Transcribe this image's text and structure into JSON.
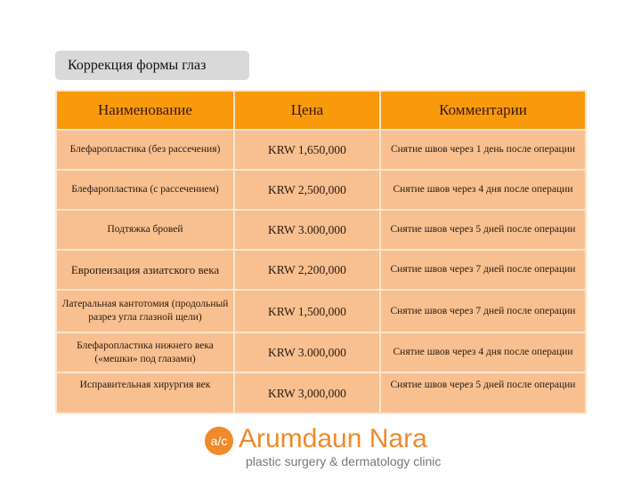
{
  "title": "Коррекция формы глаз",
  "table": {
    "headers": [
      "Наименование",
      "Цена",
      "Комментарии"
    ],
    "rows": [
      {
        "name": "Блефаропластика (без рассечения)",
        "price": "KRW 1,650,000",
        "comment": "Снятие швов через 1 день после операции"
      },
      {
        "name": "Блефаропластика (с рассечением)",
        "price": "KRW 2,500,000",
        "comment": "Снятие швов через 4 дня после операции"
      },
      {
        "name": "Подтяжка бровей",
        "price": "KRW 3.000,000",
        "comment": "Снятие швов через 5 дней после операции"
      },
      {
        "name": "Европеизация азиатского века",
        "price": "KRW 2,200,000",
        "comment": "Снятие швов через 7 дней после операции"
      },
      {
        "name": "Латеральная кантотомия (продольный разрез угла глазной щели)",
        "price": "KRW 1,500,000",
        "comment": "Снятие швов через 7 дней после операции"
      },
      {
        "name": "Блефаропластика нижнего века («мешки» под глазами)",
        "price": "KRW 3.000,000",
        "comment": "Снятие швов через 4 дня после операции"
      },
      {
        "name": "Исправительная хирургия век",
        "price": "KRW 3,000,000",
        "comment": "Снятие швов через 5 дней после операции"
      }
    ]
  },
  "logo": {
    "mark": "a/c",
    "brand": "Arumdaun Nara",
    "tagline": "plastic surgery & dermatology clinic"
  },
  "colors": {
    "header": "#f89a0c",
    "row": "#f8c090",
    "brand": "#f0892a"
  }
}
